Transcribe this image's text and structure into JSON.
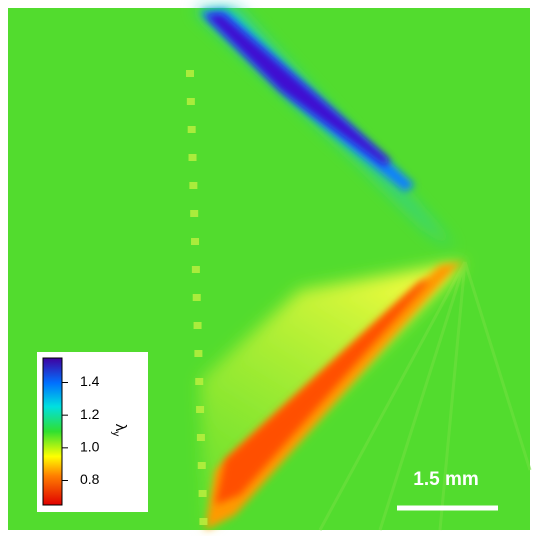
{
  "colorbar": {
    "label": "λ",
    "label_sub": "y",
    "lim": [
      0.65,
      1.55
    ],
    "ticks": [
      {
        "value": 0.8,
        "label": "0.8"
      },
      {
        "value": 1,
        "label": "1.0"
      },
      {
        "value": 1.2,
        "label": "1.2"
      },
      {
        "value": 1.4,
        "label": "1.4"
      }
    ]
  },
  "scale_bar": {
    "label": "1.5 mm"
  }
}
